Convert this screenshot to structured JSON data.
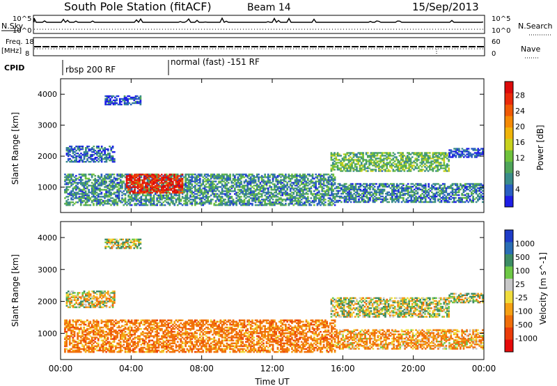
{
  "header": {
    "station": "South Pole Station (fitACF)",
    "beam": "Beam 14",
    "date": "15/Sep/2013"
  },
  "status_panels": {
    "nsky": {
      "label": "N.Sky",
      "tick_top": "10^5",
      "tick_bottom": "10^0"
    },
    "nsearch": {
      "label": "N.Search",
      "tick_top": "10^5",
      "tick_bottom": "10^0"
    },
    "freq": {
      "label_line1": "Freq.",
      "label_line2": "[MHz]",
      "tick_top": "18",
      "tick_bottom": "8"
    },
    "nave": {
      "label": "Nave",
      "tick_top": "60",
      "tick_bottom": "0"
    },
    "cpid": {
      "label": "CPID",
      "programs": [
        {
          "name": "rbsp 200 RF",
          "start_hour": 0
        },
        {
          "name": "normal (fast) -151 RF",
          "start_hour": 6
        }
      ]
    }
  },
  "chart_data": [
    {
      "type": "heatmap",
      "title": "",
      "ylabel": "Slant Range [km]",
      "xlabel": "",
      "xlim_hours": [
        0,
        24
      ],
      "x_ticks": [
        "00:00",
        "04:00",
        "08:00",
        "12:00",
        "16:00",
        "20:00",
        "00:00"
      ],
      "y_ticks": [
        "1000",
        "2000",
        "3000",
        "4000"
      ],
      "ylim": [
        180,
        4500
      ],
      "colorbar": {
        "label": "Power [dB]",
        "ticks": [
          "4",
          "8",
          "12",
          "16",
          "20",
          "24",
          "28"
        ],
        "colors": [
          "#1e1ee6",
          "#2a5fc2",
          "#3a8c8a",
          "#4fa55a",
          "#6fc23c",
          "#c8d21e",
          "#f0b40a",
          "#f58a05",
          "#f05a05",
          "#ea2a0a",
          "#dc0a0a"
        ]
      },
      "echo_regions": [
        {
          "t0": 0.2,
          "t1": 15.5,
          "r0": 400,
          "r1": 1400,
          "value": 9
        },
        {
          "t0": 3.7,
          "t1": 6.9,
          "r0": 800,
          "r1": 1400,
          "value": 28
        },
        {
          "t0": 0.3,
          "t1": 3.0,
          "r0": 1800,
          "r1": 2300,
          "value": 6
        },
        {
          "t0": 2.5,
          "t1": 4.5,
          "r0": 3650,
          "r1": 3950,
          "value": 5
        },
        {
          "t0": 15.3,
          "t1": 22.0,
          "r0": 1500,
          "r1": 2100,
          "value": 12
        },
        {
          "t0": 15.6,
          "t1": 23.9,
          "r0": 500,
          "r1": 1100,
          "value": 8
        },
        {
          "t0": 22.0,
          "t1": 23.9,
          "r0": 1950,
          "r1": 2250,
          "value": 5
        }
      ]
    },
    {
      "type": "heatmap",
      "title": "",
      "ylabel": "Slant Range [km]",
      "xlabel": "Time UT",
      "xlim_hours": [
        0,
        24
      ],
      "x_ticks": [
        "00:00",
        "04:00",
        "08:00",
        "12:00",
        "16:00",
        "20:00",
        "00:00"
      ],
      "y_ticks": [
        "1000",
        "2000",
        "3000",
        "4000"
      ],
      "ylim": [
        180,
        4500
      ],
      "colorbar": {
        "label": "Velocity [m s^-1]",
        "ticks": [
          "1000",
          "500",
          "100",
          "25",
          "-25",
          "-100",
          "-500",
          "-1000"
        ],
        "colors": [
          "#1e3cc8",
          "#2a6eb4",
          "#3c8c64",
          "#6ec846",
          "#c8c8c8",
          "#f0dc3c",
          "#f5a014",
          "#f06e0a",
          "#eb3c0a",
          "#e60a0a"
        ]
      },
      "echo_regions": [
        {
          "t0": 0.2,
          "t1": 15.5,
          "r0": 400,
          "r1": 1400,
          "value": -300
        },
        {
          "t0": 0.3,
          "t1": 3.0,
          "r0": 1800,
          "r1": 2300,
          "value": -50
        },
        {
          "t0": 2.5,
          "t1": 4.5,
          "r0": 3650,
          "r1": 3950,
          "value": 0
        },
        {
          "t0": 15.3,
          "t1": 22.0,
          "r0": 1500,
          "r1": 2100,
          "value": 0
        },
        {
          "t0": 15.6,
          "t1": 23.9,
          "r0": 500,
          "r1": 1100,
          "value": -200
        },
        {
          "t0": 22.0,
          "t1": 23.9,
          "r0": 1950,
          "r1": 2250,
          "value": 0
        }
      ]
    }
  ]
}
